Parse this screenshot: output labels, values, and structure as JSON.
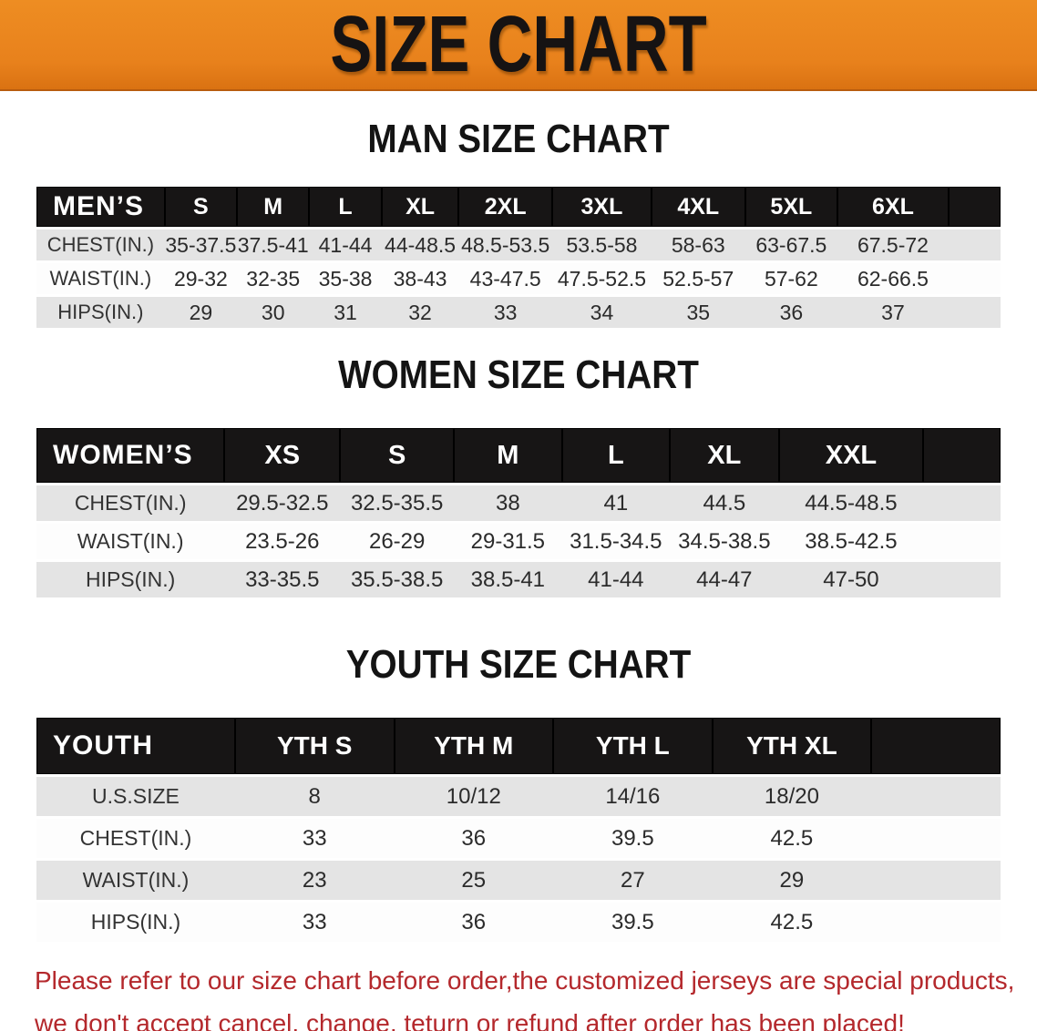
{
  "banner": {
    "title": "SIZE CHART",
    "bg_color": "#E8811C",
    "text_color": "#161313"
  },
  "sections": [
    {
      "title": "MAN SIZE CHART",
      "header_label": "MEN’S",
      "columns": [
        "S",
        "M",
        "L",
        "XL",
        "2XL",
        "3XL",
        "4XL",
        "5XL",
        "6XL"
      ],
      "rows": [
        {
          "label": "CHEST(IN.)",
          "values": [
            "35-37.5",
            "37.5-41",
            "41-44",
            "44-48.5",
            "48.5-53.5",
            "53.5-58",
            "58-63",
            "63-67.5",
            "67.5-72"
          ]
        },
        {
          "label": "WAIST(IN.)",
          "values": [
            "29-32",
            "32-35",
            "35-38",
            "38-43",
            "43-47.5",
            "47.5-52.5",
            "52.5-57",
            "57-62",
            "62-66.5"
          ]
        },
        {
          "label": "HIPS(IN.)",
          "values": [
            "29",
            "30",
            "31",
            "32",
            "33",
            "34",
            "35",
            "36",
            "37"
          ]
        }
      ]
    },
    {
      "title": "WOMEN SIZE CHART",
      "header_label": "WOMEN’S",
      "columns": [
        "XS",
        "S",
        "M",
        "L",
        "XL",
        "XXL"
      ],
      "rows": [
        {
          "label": "CHEST(IN.)",
          "values": [
            "29.5-32.5",
            "32.5-35.5",
            "38",
            "41",
            "44.5",
            "44.5-48.5"
          ]
        },
        {
          "label": "WAIST(IN.)",
          "values": [
            "23.5-26",
            "26-29",
            "29-31.5",
            "31.5-34.5",
            "34.5-38.5",
            "38.5-42.5"
          ]
        },
        {
          "label": "HIPS(IN.)",
          "values": [
            "33-35.5",
            "35.5-38.5",
            "38.5-41",
            "41-44",
            "44-47",
            "47-50"
          ]
        }
      ]
    },
    {
      "title": "YOUTH SIZE CHART",
      "header_label": "YOUTH",
      "columns": [
        "YTH S",
        "YTH M",
        "YTH L",
        "YTH XL"
      ],
      "rows": [
        {
          "label": "U.S.SIZE",
          "values": [
            "8",
            "10/12",
            "14/16",
            "18/20"
          ]
        },
        {
          "label": "CHEST(IN.)",
          "values": [
            "33",
            "36",
            "39.5",
            "42.5"
          ]
        },
        {
          "label": "WAIST(IN.)",
          "values": [
            "23",
            "25",
            "27",
            "29"
          ]
        },
        {
          "label": "HIPS(IN.)",
          "values": [
            "33",
            "36",
            "39.5",
            "42.5"
          ]
        }
      ]
    }
  ],
  "disclaimer": {
    "line1": "Please refer to our size chart before order,the customized jerseys are special products,",
    "line2": "we don't accept cancel, change, teturn or refund after order has been placed!",
    "color": "#B4282C"
  },
  "colors": {
    "table_header_bg": "#171515",
    "row_shaded_bg": "#E4E4E4",
    "row_plain_bg": "#FDFDFD"
  }
}
